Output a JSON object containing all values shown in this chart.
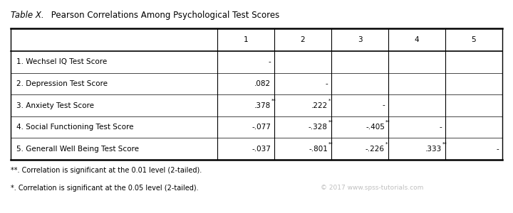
{
  "title_italic": "Table X.",
  "title_rest": " Pearson Correlations Among Psychological Test Scores",
  "col_headers": [
    "",
    "1",
    "2",
    "3",
    "4",
    "5"
  ],
  "rows": [
    {
      "label": "1. Wechsel IQ Test Score",
      "vals": [
        "-",
        "",
        "",
        "",
        ""
      ]
    },
    {
      "label": "2. Depression Test Score",
      "vals": [
        ".082",
        "-",
        "",
        "",
        ""
      ]
    },
    {
      "label": "3. Anxiety Test Score",
      "vals": [
        ".378**",
        ".222*",
        "-",
        "",
        ""
      ]
    },
    {
      "label": "4. Social Functioning Test Score",
      "vals": [
        "-.077",
        "-.328**",
        "-.405**",
        "-",
        ""
      ]
    },
    {
      "label": "5. Generall Well Being Test Score",
      "vals": [
        "-.037",
        "-.801**",
        "-.226*",
        ".333**",
        "-"
      ]
    }
  ],
  "footnotes": [
    "**. Correlation is significant at the 0.01 level (2-tailed).",
    "*. Correlation is significant at the 0.05 level (2-tailed)."
  ],
  "watermark": "© 2017 www.spss-tutorials.com",
  "bg_color": "#ffffff",
  "font_size": 7.5,
  "title_font_size": 8.5,
  "footnote_font_size": 7.0
}
